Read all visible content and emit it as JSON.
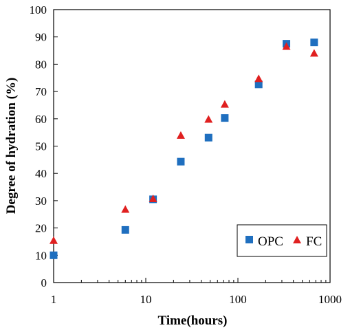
{
  "chart_data": {
    "type": "scatter",
    "xlabel": "Time(hours)",
    "ylabel": "Degree of hydration (%)",
    "xscale": "log",
    "xlim": [
      1,
      1000
    ],
    "ylim": [
      0,
      100
    ],
    "xticks": [
      "1",
      "10",
      "100",
      "1000"
    ],
    "yticks": [
      "0",
      "10",
      "20",
      "30",
      "40",
      "50",
      "60",
      "70",
      "80",
      "90",
      "100"
    ],
    "grid": false,
    "legend_position": "bottom-right",
    "series": [
      {
        "name": "OPC",
        "marker": "square",
        "color": "#1f6fbf",
        "x": [
          1,
          6,
          12,
          24,
          48,
          72,
          168,
          336,
          672
        ],
        "y": [
          10,
          19.3,
          30.5,
          44.3,
          53.1,
          60.3,
          72.6,
          87.5,
          88
        ]
      },
      {
        "name": "FC",
        "marker": "triangle",
        "color": "#e02020",
        "x": [
          1,
          6,
          12,
          24,
          48,
          72,
          168,
          336,
          672
        ],
        "y": [
          15.3,
          26.7,
          30.6,
          53.8,
          59.7,
          65.2,
          74.6,
          86.4,
          83.9
        ]
      }
    ]
  }
}
